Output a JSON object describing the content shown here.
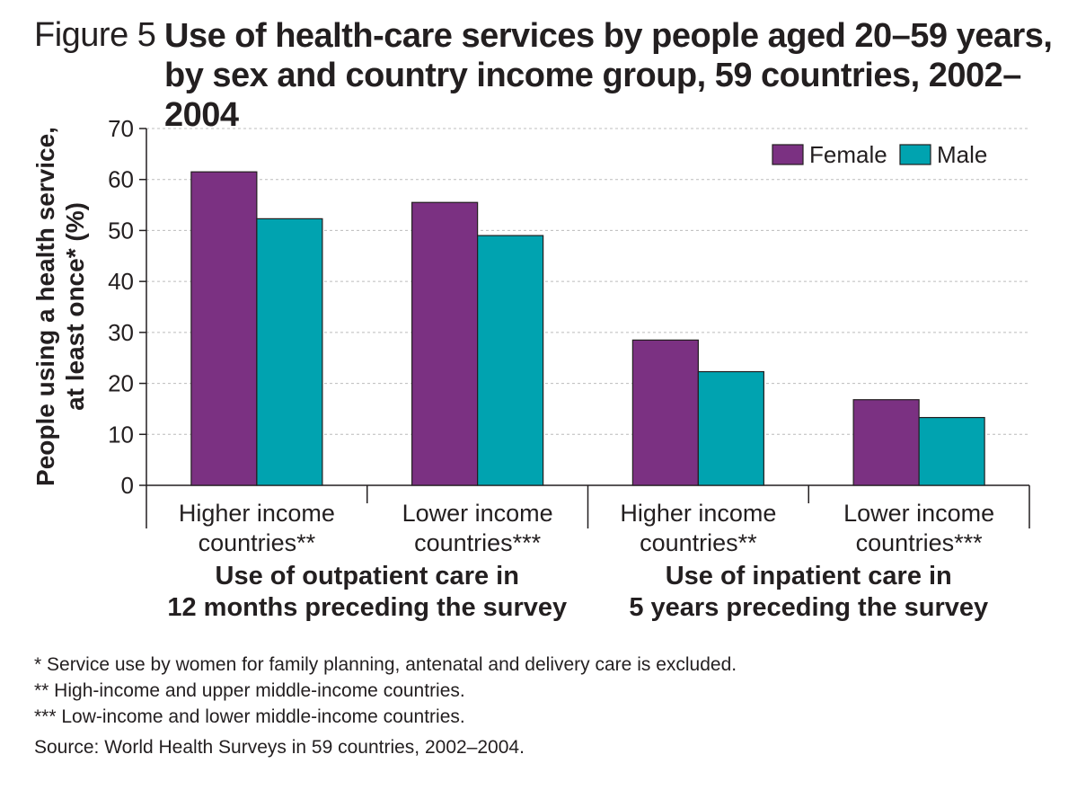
{
  "figure": {
    "label": "Figure 5",
    "title_lines": [
      "Use of health-care services by people aged 20–59 years,",
      "by sex and country income group, 59 countries, 2002–2004"
    ]
  },
  "chart_data": {
    "type": "bar",
    "title": "Use of health-care services by people aged 20–59 years, by sex and country income group, 59 countries, 2002–2004",
    "ylabel_lines": [
      "People using a health service,",
      "at least once* (%)"
    ],
    "ylim": [
      0,
      70
    ],
    "yticks": [
      0,
      10,
      20,
      30,
      40,
      50,
      60,
      70
    ],
    "grid": true,
    "legend_position": "top-right",
    "categories": [
      [
        "Higher income",
        "countries**"
      ],
      [
        "Lower income",
        "countries***"
      ],
      [
        "Higher income",
        "countries**"
      ],
      [
        "Lower income",
        "countries***"
      ]
    ],
    "groups": [
      {
        "label_lines": [
          "Use of outpatient care in",
          "12 months preceding the survey"
        ],
        "categories": [
          0,
          1
        ]
      },
      {
        "label_lines": [
          "Use of inpatient care in",
          "5 years preceding the survey"
        ],
        "categories": [
          2,
          3
        ]
      }
    ],
    "series": [
      {
        "name": "Female",
        "color": "#7b3182",
        "values": [
          61.5,
          55.5,
          28.5,
          16.8
        ]
      },
      {
        "name": "Male",
        "color": "#00a3b0",
        "values": [
          52.3,
          49.0,
          22.3,
          13.3
        ]
      }
    ]
  },
  "footnotes": [
    "* Service use by women for family planning, antenatal and delivery care is excluded.",
    "** High-income and upper middle-income countries.",
    "*** Low-income and lower middle-income countries."
  ],
  "source": "Source: World Health Surveys in 59 countries, 2002–2004."
}
